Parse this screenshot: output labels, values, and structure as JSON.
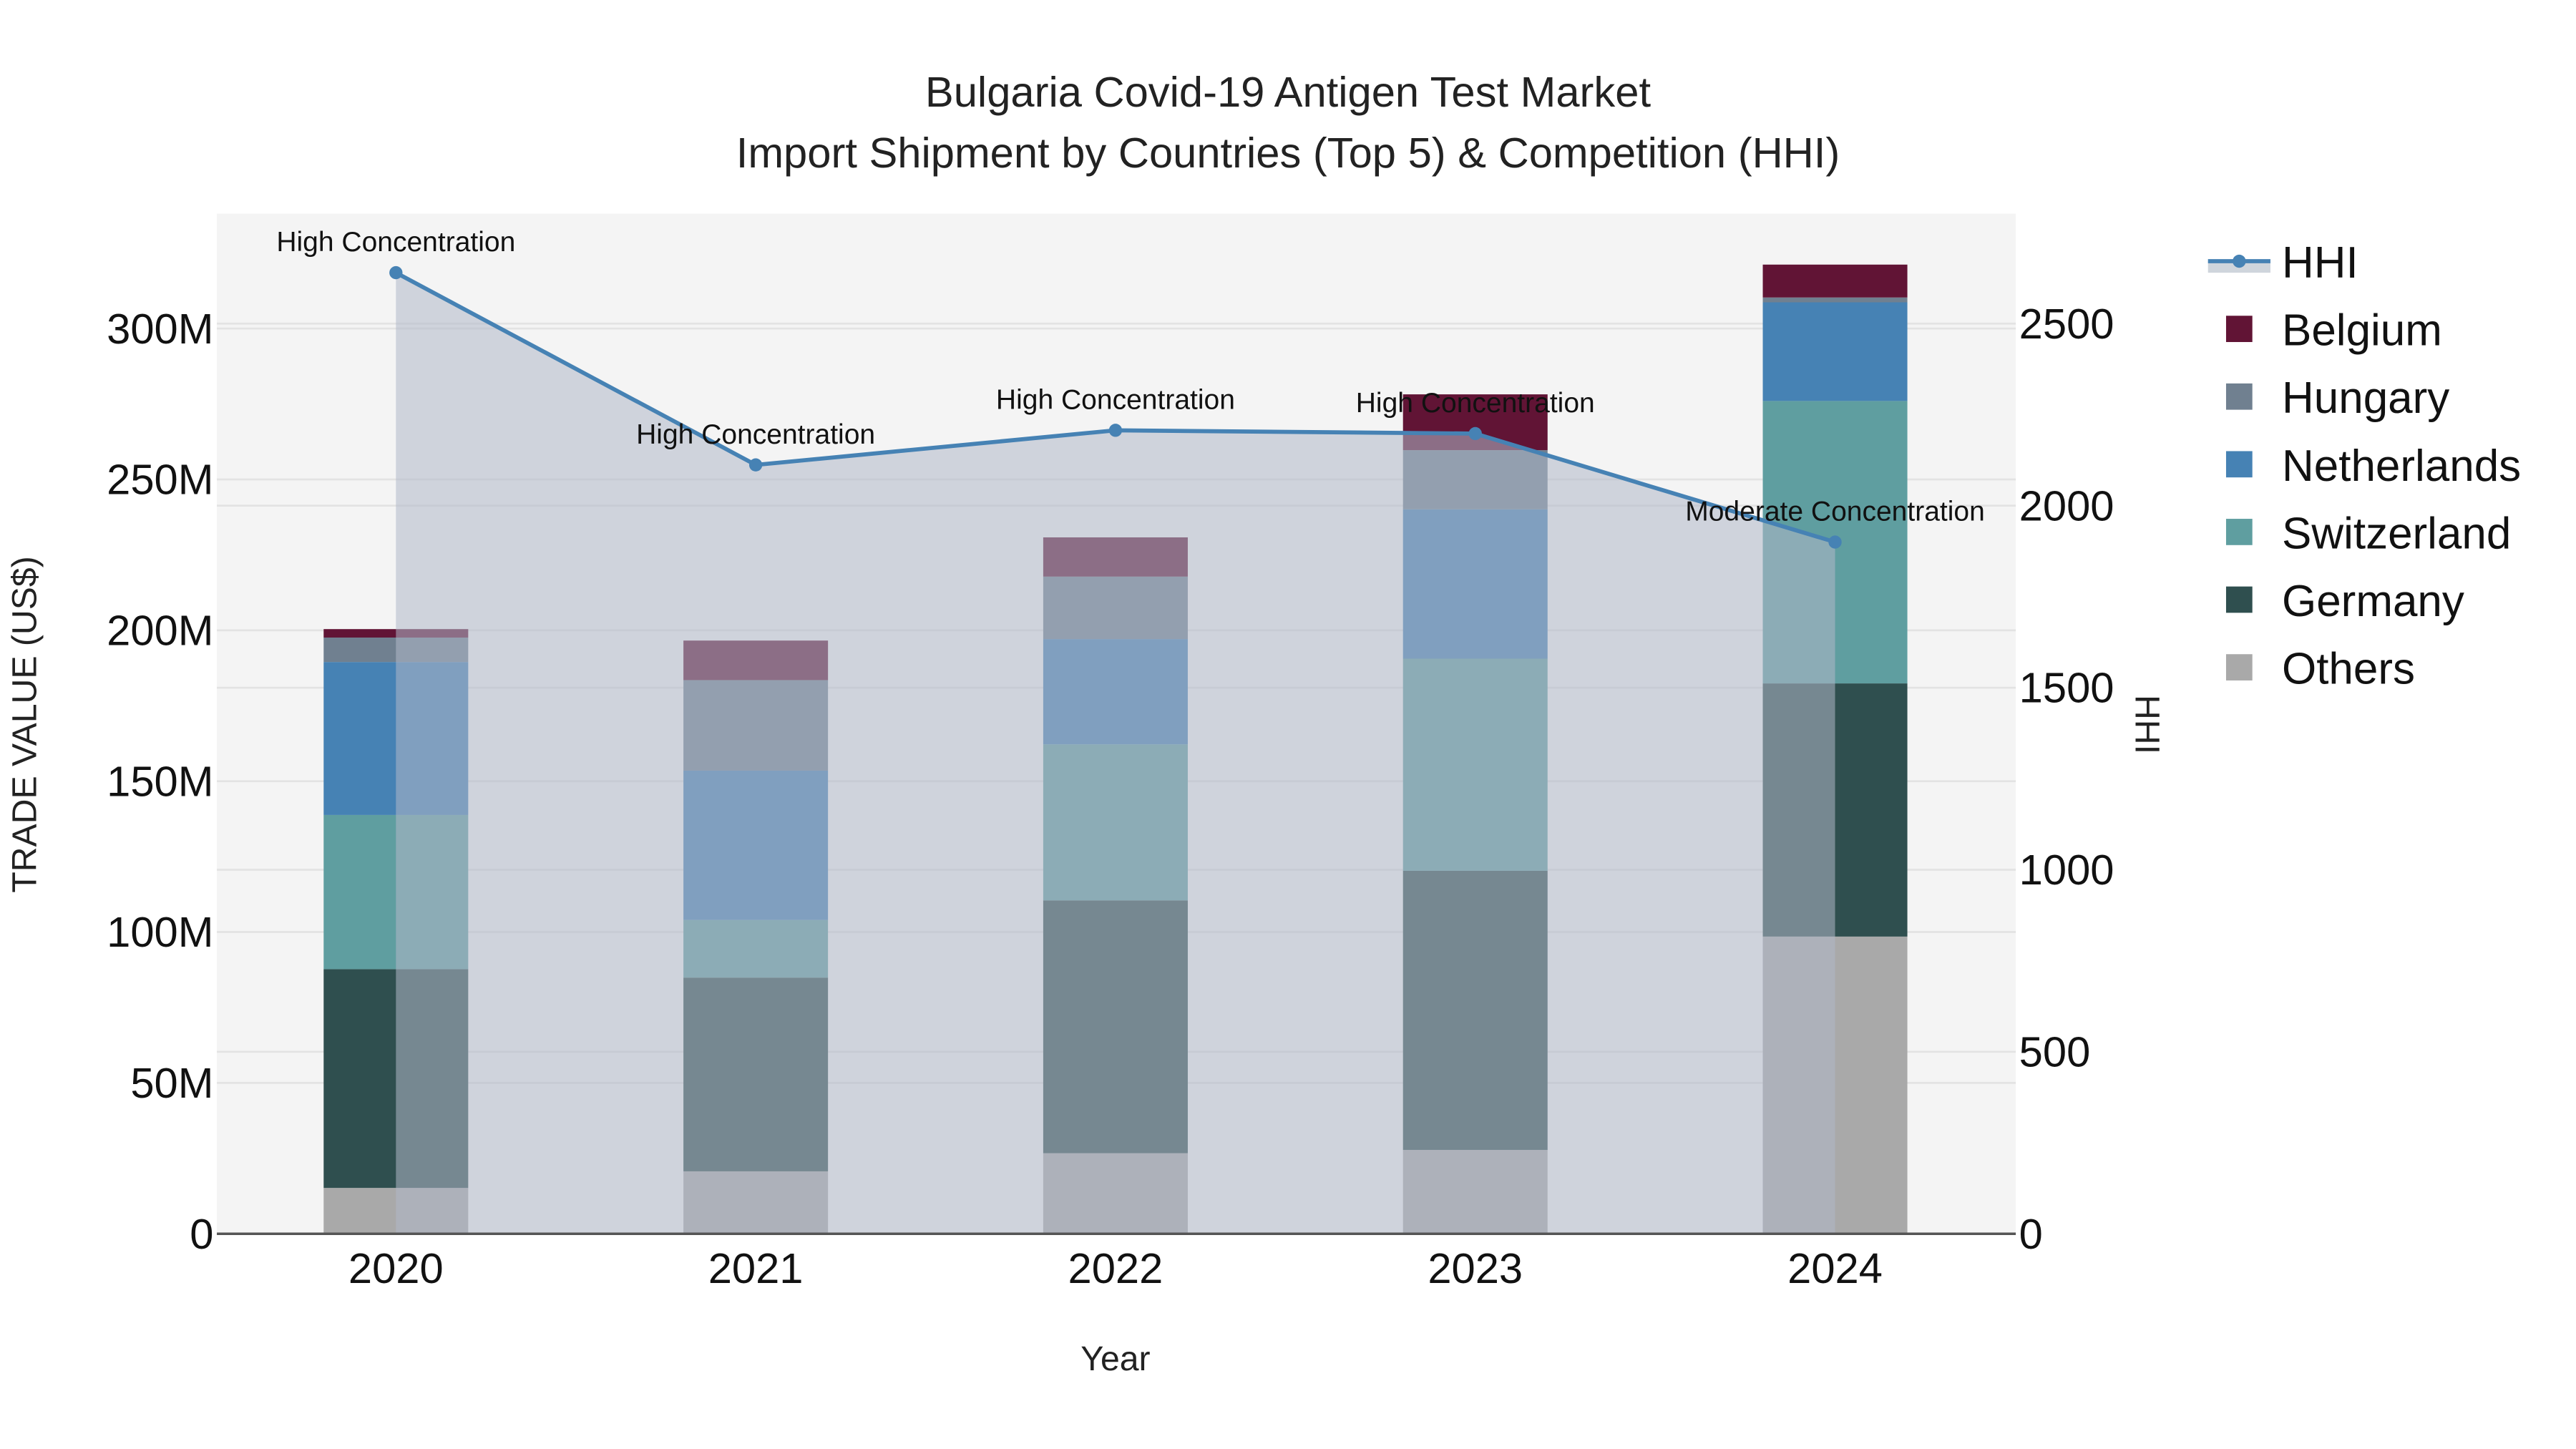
{
  "title": {
    "line1": "Bulgaria Covid-19 Antigen Test Market",
    "line2": "Import Shipment by Countries (Top 5) & Competition (HHI)"
  },
  "axes": {
    "x_label": "Year",
    "y_left_label": "TRADE VALUE (US$)",
    "y_right_label": "HHI",
    "y_left_ticks": [
      "0",
      "50M",
      "100M",
      "150M",
      "200M",
      "250M",
      "300M"
    ],
    "y_right_ticks": [
      "0",
      "500",
      "1000",
      "1500",
      "2000",
      "2500"
    ]
  },
  "legend": {
    "items": [
      {
        "label": "HHI",
        "type": "line",
        "color": "#4682b4"
      },
      {
        "label": "Belgium",
        "type": "box",
        "color": "#611435"
      },
      {
        "label": "Hungary",
        "type": "box",
        "color": "#708090"
      },
      {
        "label": "Netherlands",
        "type": "box",
        "color": "#4682b4"
      },
      {
        "label": "Switzerland",
        "type": "box",
        "color": "#5f9ea0"
      },
      {
        "label": "Germany",
        "type": "box",
        "color": "#2f4f4f"
      },
      {
        "label": "Others",
        "type": "box",
        "color": "#a9a9a9"
      }
    ]
  },
  "colors": {
    "plot_bg": "#f4f4f4",
    "hhi_line": "#4682b4",
    "hhi_fill": "rgba(176,184,200,0.55)",
    "grid": "#e3e3e3",
    "axis_line": "#555555"
  },
  "chart_data": {
    "type": "bar",
    "stacked": true,
    "title": "Bulgaria Covid-19 Antigen Test Market — Import Shipment by Countries (Top 5) & Competition (HHI)",
    "xlabel": "Year",
    "ylabel": "TRADE VALUE (US$)",
    "y2label": "HHI",
    "categories": [
      "2020",
      "2021",
      "2022",
      "2023",
      "2024"
    ],
    "ylim": [
      0,
      330000000
    ],
    "y2lim": [
      0,
      2800
    ],
    "legend_position": "right",
    "grid": true,
    "series": [
      {
        "name": "Others",
        "color": "#a9a9a9",
        "values": [
          15200000,
          20700000,
          26700000,
          27800000,
          98500000
        ]
      },
      {
        "name": "Germany",
        "color": "#2f4f4f",
        "values": [
          72500000,
          64200000,
          83800000,
          92500000,
          83900000
        ]
      },
      {
        "name": "Switzerland",
        "color": "#5f9ea0",
        "values": [
          51100000,
          19100000,
          51700000,
          70300000,
          93600000
        ]
      },
      {
        "name": "Netherlands",
        "color": "#4682b4",
        "values": [
          50700000,
          49500000,
          34900000,
          49500000,
          32700000
        ]
      },
      {
        "name": "Hungary",
        "color": "#708090",
        "values": [
          8100000,
          30000000,
          20700000,
          19600000,
          1600000
        ]
      },
      {
        "name": "Belgium",
        "color": "#611435",
        "values": [
          2800000,
          13100000,
          13000000,
          18500000,
          10900000
        ]
      }
    ],
    "line_series": {
      "name": "HHI",
      "axis": "right",
      "color": "#4682b4",
      "fill": "tozeroy",
      "values": [
        2640,
        2112,
        2207,
        2198,
        1900
      ],
      "annotations": [
        "High Concentration",
        "High Concentration",
        "High Concentration",
        "High Concentration",
        "Moderate Concentration"
      ]
    }
  }
}
